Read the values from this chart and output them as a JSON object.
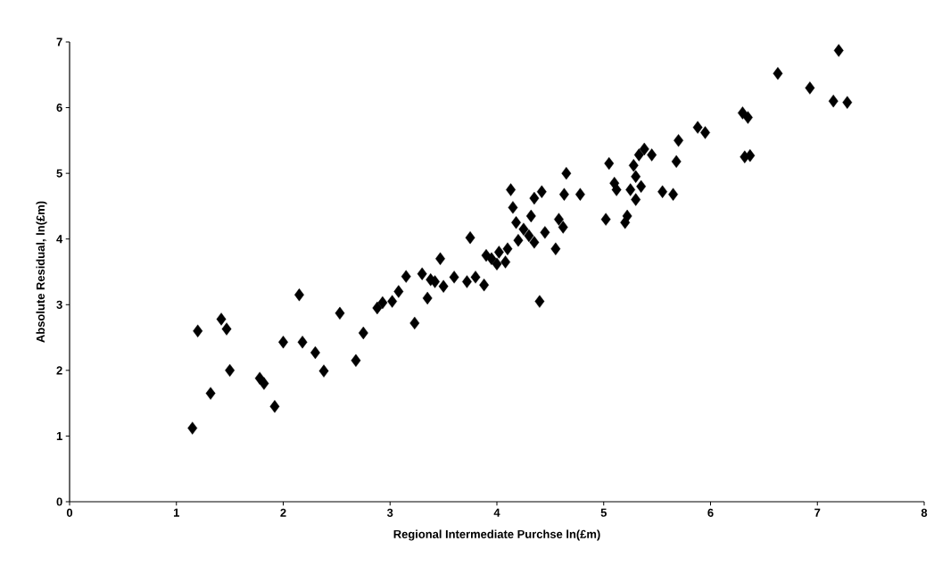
{
  "chart_data": {
    "type": "scatter",
    "xlabel": "Regional Intermediate Purchse ln(£m)",
    "ylabel": "Absolute Residual, ln(£m)",
    "xlim": [
      0,
      8
    ],
    "ylim": [
      0,
      7
    ],
    "xticks": [
      0,
      1,
      2,
      3,
      4,
      5,
      6,
      7,
      8
    ],
    "yticks": [
      0,
      1,
      2,
      3,
      4,
      5,
      6,
      7
    ],
    "marker": "diamond",
    "series": [
      {
        "color": "#000000",
        "x": [
          1.15,
          1.2,
          1.32,
          1.42,
          1.47,
          1.5,
          1.78,
          1.82,
          1.92,
          2.0,
          2.15,
          2.18,
          2.3,
          2.38,
          2.53,
          2.68,
          2.75,
          2.88,
          2.93,
          3.02,
          3.08,
          3.15,
          3.23,
          3.3,
          3.35,
          3.38,
          3.42,
          3.47,
          3.5,
          3.6,
          3.72,
          3.75,
          3.8,
          3.88,
          3.9,
          3.95,
          4.0,
          4.02,
          4.08,
          4.1,
          4.13,
          4.15,
          4.18,
          4.2,
          4.25,
          4.3,
          4.32,
          4.35,
          4.35,
          4.4,
          4.42,
          4.45,
          4.55,
          4.58,
          4.62,
          4.63,
          4.65,
          4.78,
          5.02,
          5.05,
          5.1,
          5.12,
          5.2,
          5.22,
          5.25,
          5.28,
          5.3,
          5.3,
          5.33,
          5.35,
          5.38,
          5.45,
          5.55,
          5.65,
          5.68,
          5.7,
          5.88,
          5.95,
          6.3,
          6.32,
          6.35,
          6.37,
          6.63,
          6.93,
          7.15,
          7.2,
          7.28
        ],
        "values": [
          1.12,
          2.6,
          1.65,
          2.78,
          2.63,
          2.0,
          1.88,
          1.8,
          1.45,
          2.43,
          3.15,
          2.43,
          2.27,
          1.99,
          2.87,
          2.15,
          2.57,
          2.95,
          3.03,
          3.05,
          3.2,
          3.43,
          2.72,
          3.47,
          3.1,
          3.38,
          3.35,
          3.7,
          3.28,
          3.42,
          3.35,
          4.02,
          3.42,
          3.3,
          3.75,
          3.7,
          3.62,
          3.8,
          3.65,
          3.85,
          4.75,
          4.48,
          4.25,
          3.98,
          4.15,
          4.05,
          4.35,
          3.95,
          4.62,
          3.05,
          4.72,
          4.1,
          3.85,
          4.3,
          4.18,
          4.68,
          5.0,
          4.68,
          4.3,
          5.15,
          4.85,
          4.75,
          4.25,
          4.35,
          4.75,
          5.12,
          4.95,
          4.6,
          5.28,
          4.8,
          5.37,
          5.28,
          4.72,
          4.68,
          5.18,
          5.5,
          5.7,
          5.62,
          5.92,
          5.25,
          5.85,
          5.27,
          6.52,
          6.3,
          6.1,
          6.87,
          6.08
        ]
      }
    ]
  }
}
